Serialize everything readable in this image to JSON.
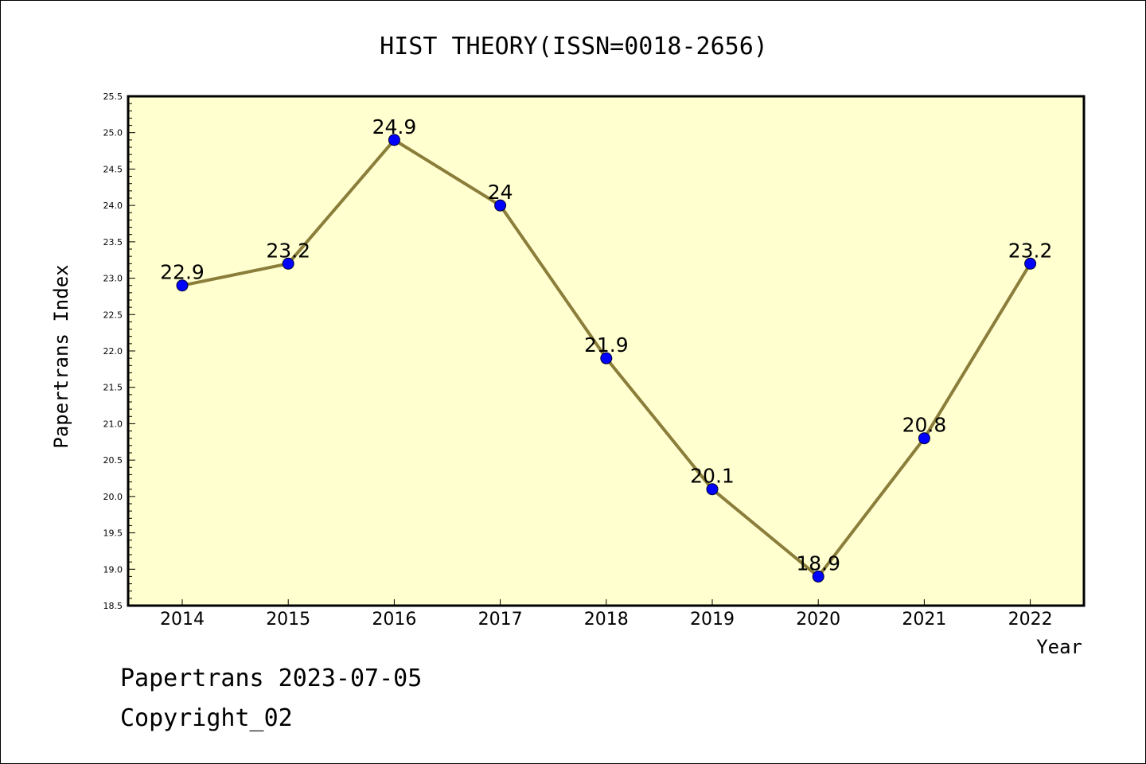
{
  "chart_data": {
    "type": "line",
    "title": "HIST THEORY(ISSN=0018-2656)",
    "xlabel": "Year",
    "ylabel": "Papertrans Index",
    "categories": [
      "2014",
      "2015",
      "2016",
      "2017",
      "2018",
      "2019",
      "2020",
      "2021",
      "2022"
    ],
    "series": [
      {
        "values": [
          22.9,
          23.2,
          24.9,
          24.0,
          21.9,
          20.1,
          18.9,
          20.8,
          23.2
        ],
        "labels": [
          "22.9",
          "23.2",
          "24.9",
          "24",
          "21.9",
          "20.1",
          "18.9",
          "20.8",
          "23.2"
        ]
      }
    ],
    "ylim": [
      18.5,
      25.5
    ],
    "yticks": [
      "18.5",
      "19.0",
      "19.5",
      "20.0",
      "20.5",
      "21.0",
      "21.5",
      "22.0",
      "22.5",
      "23.0",
      "23.5",
      "24.0",
      "24.5",
      "25.0",
      "25.5"
    ],
    "grid": false,
    "colors": {
      "plot_background": "#ffffd0",
      "line": "#8b7d3a",
      "marker": "#0000ff",
      "frame": "#000000"
    }
  },
  "footer": {
    "line1": "Papertrans 2023-07-05",
    "line2": "Copyright_02"
  }
}
